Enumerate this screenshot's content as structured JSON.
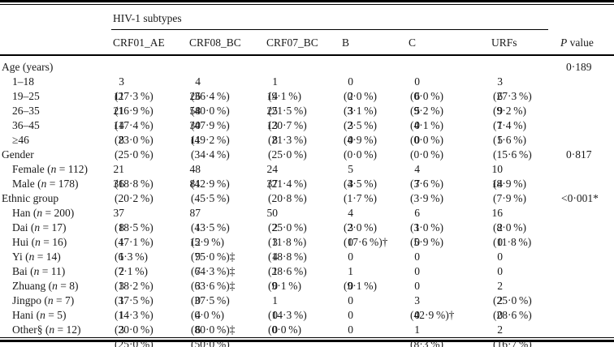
{
  "table": {
    "spanner": "HIV-1 subtypes",
    "columns": [
      "CRF01_AE",
      "CRF08_BC",
      "CRF07_BC",
      "B",
      "C",
      "URFs"
    ],
    "p_header": {
      "italic": "P",
      "rest": " value"
    },
    "rows": [
      {
        "label": "Age (years)",
        "group": true,
        "indent": false,
        "cells": [
          "",
          "",
          "",
          "",
          "",
          ""
        ],
        "p": "0·189"
      },
      {
        "label": "1–18",
        "group": false,
        "indent": true,
        "cells": [
          "3 (27·3 %)",
          "4 (36·4 %)",
          "1 (9·1 %)",
          "0 (0·0 %)",
          "0 (0·0 %)",
          "3 (27·3 %)"
        ],
        "p": ""
      },
      {
        "label": "19–25",
        "group": false,
        "indent": true,
        "cells": [
          "11 (16·9 %)",
          "26 (40·0 %)",
          "14 (21·5 %)",
          "2 (3·1 %)",
          "6 (9·2 %)",
          "6 (9·2 %)"
        ],
        "p": ""
      },
      {
        "label": "26–35",
        "group": false,
        "indent": true,
        "cells": [
          "21 (17·4 %)",
          "58 (47·9 %)",
          "25 (20·7 %)",
          "3 (2·5 %)",
          "5 (4·1 %)",
          "9 (7·4 %)"
        ],
        "p": ""
      },
      {
        "label": "36–45",
        "group": false,
        "indent": true,
        "cells": [
          "14 (23·0 %)",
          "30 (49·2 %)",
          "13 (21·3 %)",
          "3 (4·9 %)",
          "0 (0·0 %)",
          "1 (1·6 %)"
        ],
        "p": ""
      },
      {
        "label": "≥46",
        "group": false,
        "indent": true,
        "cells": [
          "8 (25·0 %)",
          "11 (34·4 %)",
          "8 (25·0 %)",
          "0 (0·0 %)",
          "0 (0·0 %)",
          "5 (15·6 %)"
        ],
        "p": ""
      },
      {
        "label": "Gender",
        "group": true,
        "indent": false,
        "cells": [
          "",
          "",
          "",
          "",
          "",
          ""
        ],
        "p": "0·817"
      },
      {
        "label": "Female",
        "n": "112",
        "group": false,
        "indent": true,
        "cells": [
          "21 (18·8 %)",
          "48 (42·9 %)",
          "24 (21·4 %)",
          "5 (4·5 %)",
          "4 (3·6 %)",
          "10 (8·9 %)"
        ],
        "p": ""
      },
      {
        "label": "Male",
        "n": "178",
        "group": false,
        "indent": true,
        "cells": [
          "36 (20·2 %)",
          "81 (45·5 %)",
          "37 (20·8 %)",
          "3 (1·7 %)",
          "7 (3·9 %)",
          "14 (7·9 %)"
        ],
        "p": ""
      },
      {
        "label": "Ethnic group",
        "group": true,
        "indent": false,
        "cells": [
          "",
          "",
          "",
          "",
          "",
          ""
        ],
        "p": "<0·001*"
      },
      {
        "label": "Han",
        "n": "200",
        "group": false,
        "indent": true,
        "cells": [
          "37 (18·5 %)",
          "87 (43·5 %)",
          "50 (25·0 %)",
          "4 (2·0 %)",
          "6 (3·0 %)",
          "16 (8·0 %)"
        ],
        "p": ""
      },
      {
        "label": "Dai",
        "n": "17",
        "group": false,
        "indent": true,
        "cells": [
          "8 (47·1 %)",
          "1 (5·9 %)",
          "2 (11·8 %)",
          "3 (17·6 %)†",
          "1 (5·9 %)",
          "2 (11·8 %)"
        ],
        "p": ""
      },
      {
        "label": "Hui",
        "n": "16",
        "group": false,
        "indent": true,
        "cells": [
          "1 (6·3 %)",
          "12 (75·0 %)‡",
          "3 (18·8 %)",
          "0",
          "0",
          "0"
        ],
        "p": ""
      },
      {
        "label": "Yi",
        "n": "14",
        "group": false,
        "indent": true,
        "cells": [
          "1 (7·1 %)",
          "9 (64·3 %)‡",
          "4 (28·6 %)",
          "0",
          "0",
          "0"
        ],
        "p": ""
      },
      {
        "label": "Bai",
        "n": "11",
        "group": false,
        "indent": true,
        "cells": [
          "2 (18·2 %)",
          "7 (63·6 %)‡",
          "1 (9·1 %)",
          "1 (9·1 %)",
          "0",
          "0"
        ],
        "p": ""
      },
      {
        "label": "Zhuang",
        "n": "8",
        "group": false,
        "indent": true,
        "cells": [
          "3 (37·5 %)",
          "3 (37·5 %)",
          "0",
          "0",
          "0",
          "2 (25·0 %)"
        ],
        "p": ""
      },
      {
        "label": "Jingpo",
        "n": "7",
        "group": false,
        "indent": true,
        "cells": [
          "1 (14·3 %)",
          "0 (0·0 %)",
          "1 (14·3 %)",
          "0",
          "3 (42·9 %)†",
          "2 (28·6 %)"
        ],
        "p": ""
      },
      {
        "label": "Hani",
        "n": "5",
        "group": false,
        "indent": true,
        "cells": [
          "1 (20·0 %)",
          "4 (80·0 %)‡",
          "0 (0·0 %)",
          "0",
          "0",
          "0"
        ],
        "p": ""
      },
      {
        "label": "Other§",
        "n": "12",
        "group": false,
        "indent": true,
        "cells": [
          "3 (25·0 %)",
          "6 (50·0 %)",
          "0",
          "0",
          "1 (8·3 %)",
          "2 (16·7 %)"
        ],
        "p": ""
      }
    ]
  }
}
